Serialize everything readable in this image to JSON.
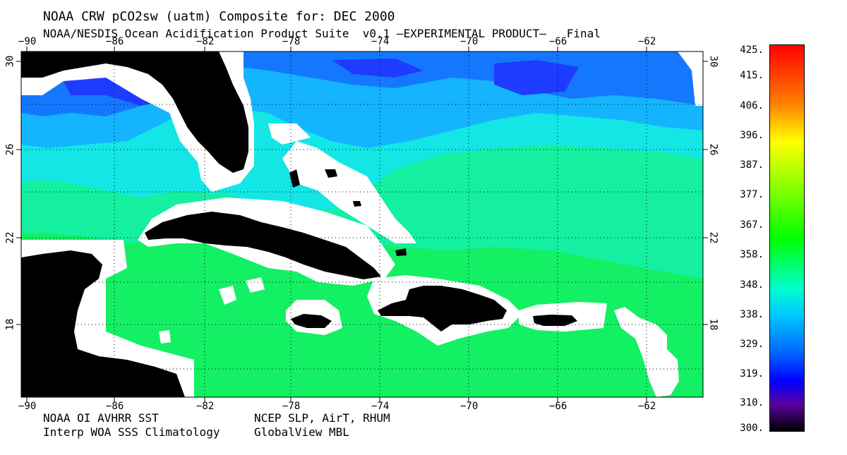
{
  "title": "NOAA CRW pCO2sw (uatm) Composite for: DEC 2000",
  "subtitle": "NOAA/NESDIS Ocean Acidification Product Suite  v0.1 –EXPERIMENTAL PRODUCT–   Final",
  "lon_labels": [
    "−90",
    "−86",
    "−82",
    "−78",
    "−74",
    "−70",
    "−66",
    "−62"
  ],
  "lat_labels": [
    "30",
    "26",
    "22",
    "18"
  ],
  "colorbar_labels": [
    "425.",
    "415.",
    "406.",
    "396.",
    "387.",
    "377.",
    "367.",
    "358.",
    "348.",
    "338.",
    "329.",
    "319.",
    "310.",
    "300."
  ],
  "footer": {
    "left_line1": "NOAA OI AVHRR SST",
    "left_line2": "Interp WOA SSS Climatology",
    "right_line1": "NCEP SLP, AirT, RHUM",
    "right_line2": "GlobalView MBL"
  },
  "colors": {
    "land": "#000000",
    "no_data": "#ffffff",
    "deep_blue": "#1e3cff",
    "blue": "#1478ff",
    "sky": "#14b4ff",
    "cyan": "#14e6e6",
    "aqua_green": "#14f0a0",
    "green": "#14f064"
  }
}
